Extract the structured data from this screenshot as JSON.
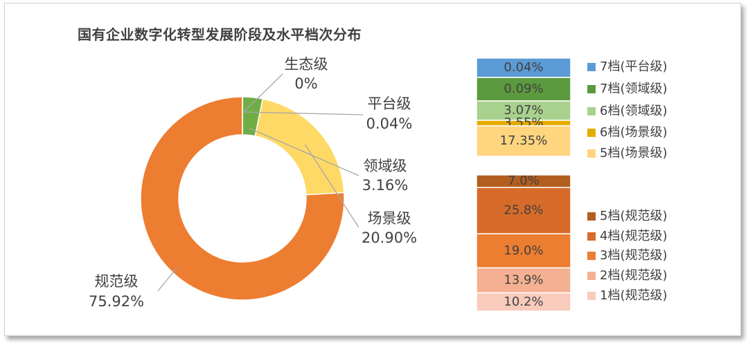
{
  "chart_data": [
    {
      "type": "pie",
      "title": "国有企业数字化转型发展阶段及水平档次分布",
      "categories": [
        "生态级",
        "平台级",
        "领域级",
        "场景级",
        "规范级"
      ],
      "values": [
        0,
        0.04,
        3.16,
        20.9,
        75.92
      ],
      "value_labels": [
        "0%",
        "0.04%",
        "3.16%",
        "20.90%",
        "75.92%"
      ],
      "colors": [
        "#5b9bd5",
        "#1f4e79",
        "#70ad47",
        "#ffd966",
        "#ed7d31"
      ]
    },
    {
      "type": "bar",
      "stacked": true,
      "group": "upper",
      "categories": [
        "7档(平台级)",
        "7档(领域级)",
        "6档(领域级)",
        "6档(场景级)",
        "5档(场景级)"
      ],
      "values": [
        0.04,
        0.09,
        3.07,
        3.55,
        17.35
      ],
      "value_labels": [
        "0.04%",
        "0.09%",
        "3.07%",
        "3.55%",
        "17.35%"
      ],
      "colors": [
        "#5b9bd5",
        "#5b9a3e",
        "#a9d18e",
        "#e5ac00",
        "#ffd580"
      ]
    },
    {
      "type": "bar",
      "stacked": true,
      "group": "lower",
      "categories": [
        "5档(规范级)",
        "4档(规范级)",
        "3档(规范级)",
        "2档(规范级)",
        "1档(规范级)"
      ],
      "values": [
        7.0,
        25.8,
        19.0,
        13.9,
        10.2
      ],
      "value_labels": [
        "7.0%",
        "25.8%",
        "19.0%",
        "13.9%",
        "10.2%"
      ],
      "colors": [
        "#b25e1f",
        "#d76b29",
        "#ed7d31",
        "#f4b090",
        "#f8cbbc"
      ]
    }
  ]
}
